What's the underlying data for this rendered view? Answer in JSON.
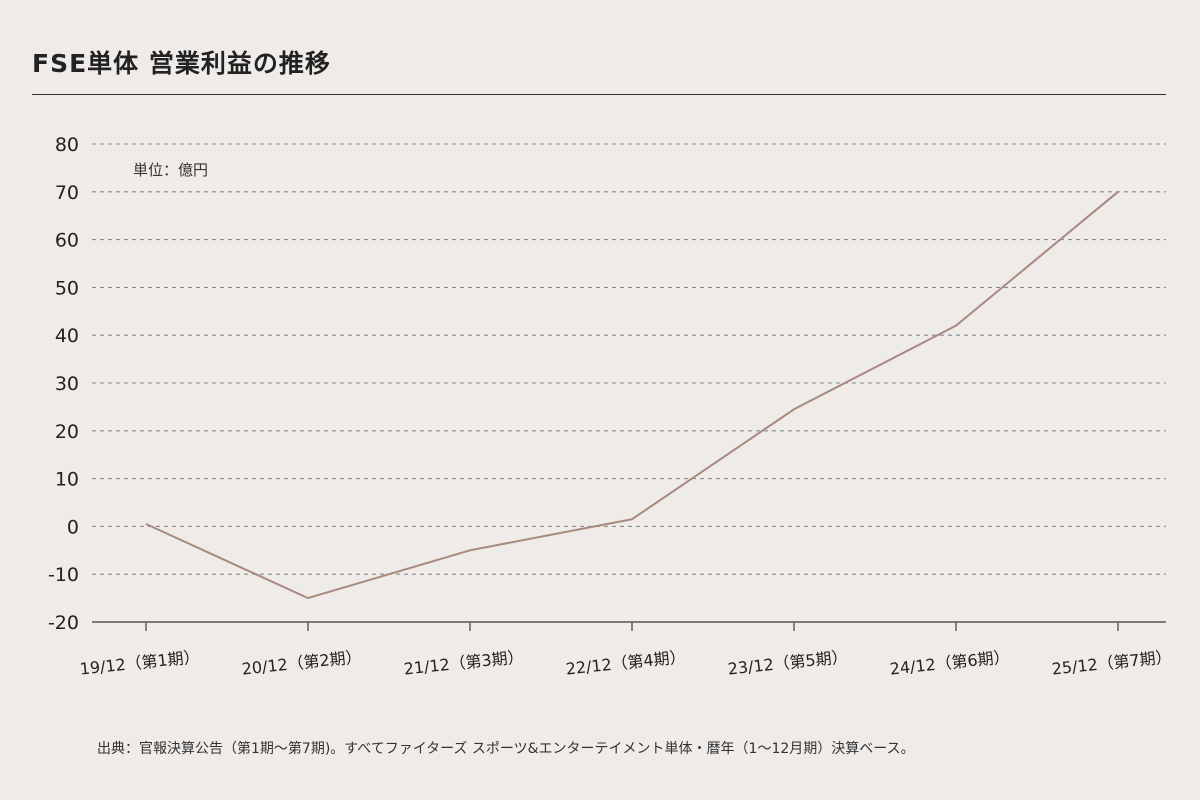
{
  "header": {
    "title": "FSE単体 営業利益の推移"
  },
  "footer": {
    "source": "出典：官報決算公告（第1期〜第7期)。すべてファイターズ スポーツ&エンターテイメント単体・暦年（1〜12月期）決算ベース。"
  },
  "chart_data": {
    "type": "line",
    "title": "FSE単体 営業利益の推移",
    "unit_label": "単位：億円",
    "categories": [
      "19/12（第1期）",
      "20/12（第2期）",
      "21/12（第3期）",
      "22/12（第4期）",
      "23/12（第5期）",
      "24/12（第6期）",
      "25/12（第7期）"
    ],
    "series": [
      {
        "values": [
          0.5,
          -15,
          -5,
          1.5,
          24.5,
          42,
          70
        ],
        "color": "#a78a7e"
      }
    ],
    "ylim": [
      -20,
      80
    ],
    "yticks": [
      80,
      70,
      60,
      50,
      40,
      30,
      20,
      10,
      0,
      -10,
      -20
    ],
    "grid": true,
    "grid_style": "dashed",
    "legend": "none"
  }
}
